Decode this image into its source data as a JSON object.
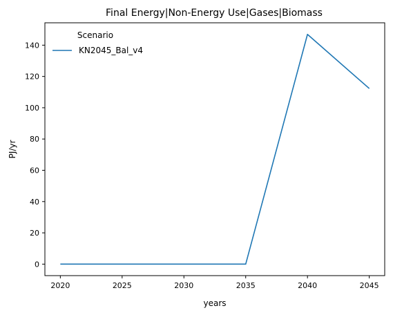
{
  "chart_data": {
    "type": "line",
    "title": "Final Energy|Non-Energy Use|Gases|Biomass",
    "xlabel": "years",
    "ylabel": "PJ/yr",
    "x": [
      2020,
      2025,
      2030,
      2035,
      2040,
      2045
    ],
    "xticks": [
      "2020",
      "2025",
      "2030",
      "2035",
      "2040",
      "2045"
    ],
    "yticks": [
      "0",
      "20",
      "40",
      "60",
      "80",
      "100",
      "120",
      "140"
    ],
    "xlim": [
      2018.75,
      2046.25
    ],
    "ylim": [
      -7.35,
      154.3
    ],
    "grid": false,
    "legend": {
      "title": "Scenario",
      "placement": "top-left"
    },
    "series": [
      {
        "name": "KN2045_Bal_v4",
        "color": "#1f77b4",
        "values": [
          0,
          0,
          0,
          0,
          146.9,
          112.3
        ]
      }
    ]
  }
}
